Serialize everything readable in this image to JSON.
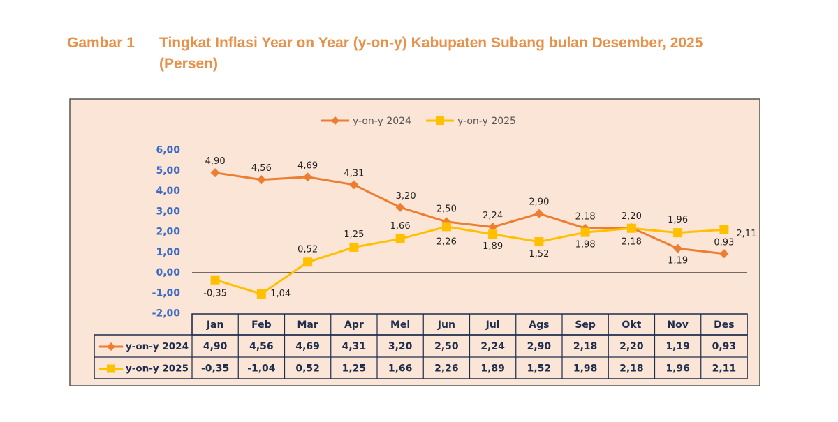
{
  "chart_data": {
    "type": "line",
    "figure_label": "Gambar 1",
    "title": "Tingkat Inflasi Year on Year (y-on-y) Kabupaten Subang bulan Desember, 2025",
    "title_unit": "(Persen)",
    "categories": [
      "Jan",
      "Feb",
      "Mar",
      "Apr",
      "Mei",
      "Jun",
      "Jul",
      "Ags",
      "Sep",
      "Okt",
      "Nov",
      "Des"
    ],
    "series": [
      {
        "name": "y-on-y 2024",
        "color": "#ed7d31",
        "marker": "diamond",
        "values": [
          4.9,
          4.56,
          4.69,
          4.31,
          3.2,
          2.5,
          2.24,
          2.9,
          2.18,
          2.2,
          1.19,
          0.93
        ],
        "value_labels": [
          "4,90",
          "4,56",
          "4,69",
          "4,31",
          "3,20",
          "2,50",
          "2,24",
          "2,90",
          "2,18",
          "2,20",
          "1,19",
          "0,93"
        ]
      },
      {
        "name": "y-on-y 2025",
        "color": "#ffc000",
        "marker": "square",
        "values": [
          -0.35,
          -1.04,
          0.52,
          1.25,
          1.66,
          2.26,
          1.89,
          1.52,
          1.98,
          2.18,
          1.96,
          2.11
        ],
        "value_labels": [
          "-0,35",
          "-1,04",
          "0,52",
          "1,25",
          "1,66",
          "2,26",
          "1,89",
          "1,52",
          "1,98",
          "2,18",
          "1,96",
          "2,11"
        ]
      }
    ],
    "ylim": [
      -2,
      6
    ],
    "yticks": [
      {
        "value": -2,
        "label": "-2,00"
      },
      {
        "value": -1,
        "label": "-1,00"
      },
      {
        "value": 0,
        "label": "0,00"
      },
      {
        "value": 1,
        "label": "1,00"
      },
      {
        "value": 2,
        "label": "2,00"
      },
      {
        "value": 3,
        "label": "3,00"
      },
      {
        "value": 4,
        "label": "4,00"
      },
      {
        "value": 5,
        "label": "5,00"
      },
      {
        "value": 6,
        "label": "6,00"
      }
    ],
    "grid": false,
    "legend": "top",
    "data_table": true
  }
}
